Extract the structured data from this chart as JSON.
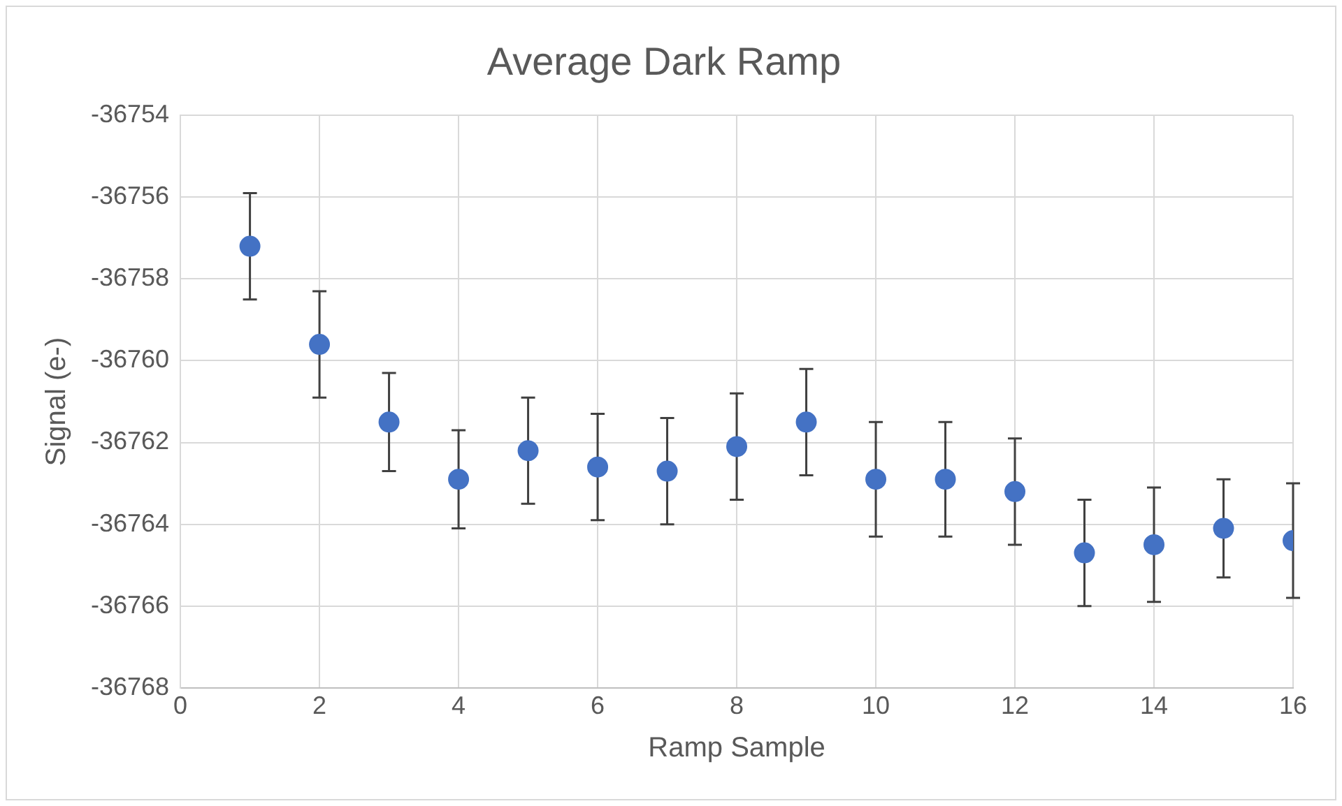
{
  "chart_data": {
    "type": "scatter",
    "title": "Average Dark Ramp",
    "xlabel": "Ramp Sample",
    "ylabel": "Signal (e-)",
    "x": [
      1,
      2,
      3,
      4,
      5,
      6,
      7,
      8,
      9,
      10,
      11,
      12,
      13,
      14,
      15,
      16
    ],
    "series": [
      {
        "color": "#4472c4",
        "values": [
          -36757.2,
          -36759.6,
          -36761.5,
          -36762.9,
          -36762.2,
          -36762.6,
          -36762.7,
          -36762.1,
          -36761.5,
          -36762.9,
          -36762.9,
          -36763.2,
          -36764.7,
          -36764.5,
          -36764.1,
          -36764.4
        ],
        "errors": [
          1.3,
          1.3,
          1.2,
          1.2,
          1.3,
          1.3,
          1.3,
          1.3,
          1.3,
          1.4,
          1.4,
          1.3,
          1.3,
          1.4,
          1.2,
          1.4
        ]
      }
    ],
    "xlim": [
      0,
      16
    ],
    "xticks": [
      0,
      2,
      4,
      6,
      8,
      10,
      12,
      14,
      16
    ],
    "ylim": [
      -36768,
      -36754
    ],
    "yticks": [
      -36768,
      -36766,
      -36764,
      -36762,
      -36760,
      -36758,
      -36756,
      -36754
    ],
    "grid": true,
    "legend": false,
    "marker": "circle"
  }
}
